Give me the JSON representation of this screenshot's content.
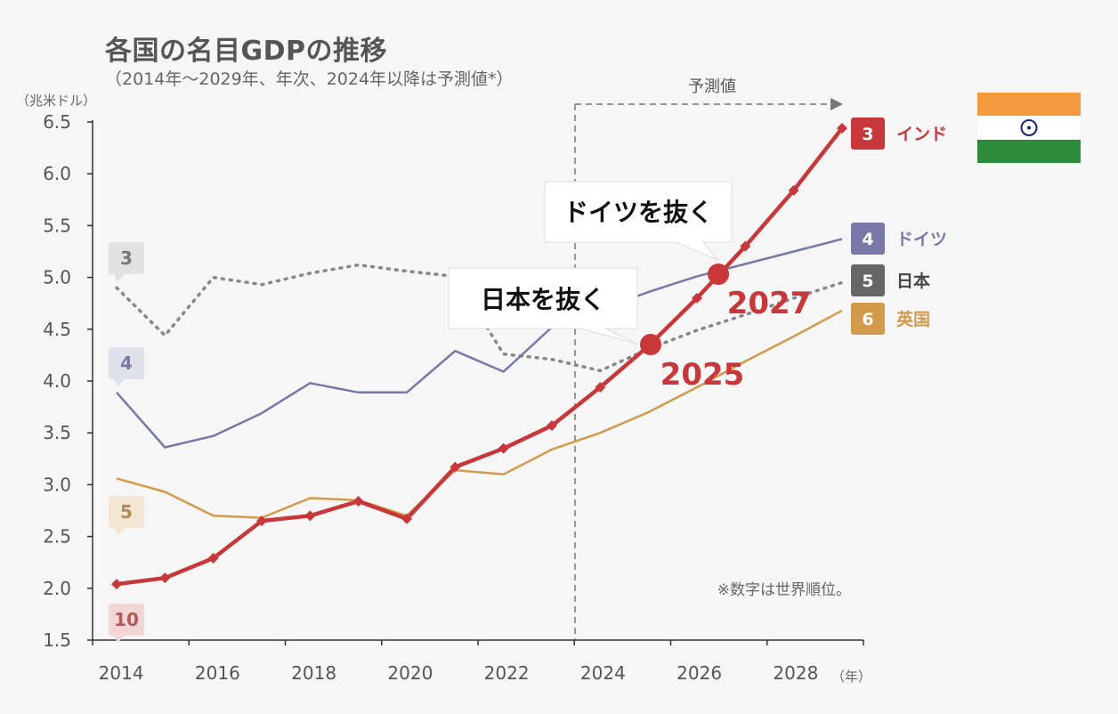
{
  "title": "各国の名目GDPの推移",
  "subtitle": "（2014年～2029年、年次、2024年以降は予測値*）",
  "note": "※数字は世界順位。",
  "forecast_label": "予測値",
  "callouts": [
    {
      "text": "ドイツを抜く",
      "year_label": "2027"
    },
    {
      "text": "日本を抜く",
      "year_label": "2025"
    }
  ],
  "flag_icon": "india-flag-icon",
  "colors": {
    "india": "#c8383a",
    "germany": "#7a78a8",
    "japan": "#777777",
    "uk": "#d39a4c"
  },
  "chart_data": {
    "type": "line",
    "title": "各国の名目GDPの推移",
    "ylabel": "（兆米ドル）",
    "xlabel": "（年）",
    "ylim": [
      1.5,
      6.5
    ],
    "xlim": [
      2014,
      2029
    ],
    "y_ticks": [
      "6.5",
      "6.0",
      "5.5",
      "5.0",
      "4.5",
      "4.0",
      "3.5",
      "3.0",
      "2.5",
      "2.0",
      "1.5"
    ],
    "x_ticks": [
      "2014",
      "2016",
      "2018",
      "2020",
      "2022",
      "2024",
      "2026",
      "2028"
    ],
    "forecast_start": 2024,
    "x": [
      2014,
      2015,
      2016,
      2017,
      2018,
      2019,
      2020,
      2021,
      2022,
      2023,
      2024,
      2025,
      2026,
      2027,
      2028,
      2029
    ],
    "series": [
      {
        "key": "india",
        "name": "インド",
        "rank_end": "3",
        "rank_start": "10",
        "values": [
          2.04,
          2.1,
          2.29,
          2.65,
          2.7,
          2.84,
          2.67,
          3.17,
          3.35,
          3.57,
          3.94,
          4.34,
          4.8,
          5.3,
          5.84,
          6.44
        ]
      },
      {
        "key": "germany",
        "name": "ドイツ",
        "rank_end": "4",
        "rank_start": "4",
        "values": [
          3.89,
          3.36,
          3.47,
          3.69,
          3.98,
          3.89,
          3.89,
          4.29,
          4.09,
          4.52,
          4.69,
          4.86,
          5.01,
          5.13,
          5.25,
          5.37
        ]
      },
      {
        "key": "japan",
        "name": "日本",
        "rank_end": "5",
        "rank_start": "3",
        "values": [
          4.9,
          4.44,
          5.0,
          4.93,
          5.04,
          5.12,
          5.06,
          5.01,
          4.26,
          4.21,
          4.1,
          4.31,
          4.49,
          4.64,
          4.8,
          4.95
        ]
      },
      {
        "key": "uk",
        "name": "英国",
        "rank_end": "6",
        "rank_start": "5",
        "values": [
          3.06,
          2.93,
          2.7,
          2.68,
          2.87,
          2.85,
          2.7,
          3.14,
          3.1,
          3.34,
          3.5,
          3.7,
          3.94,
          4.19,
          4.43,
          4.68
        ]
      }
    ]
  }
}
